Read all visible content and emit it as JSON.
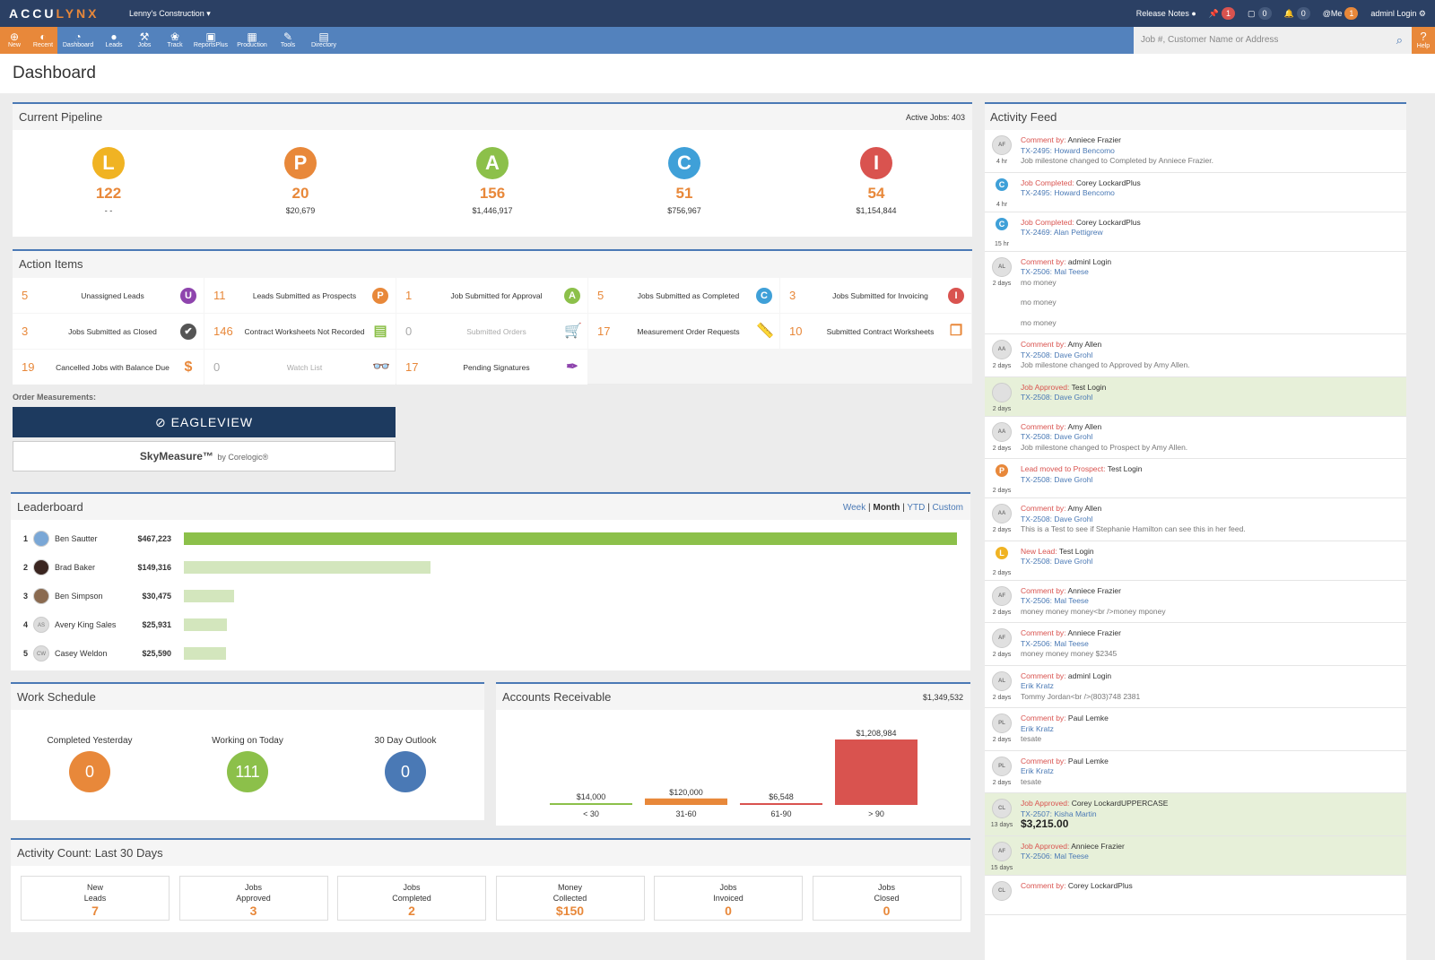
{
  "header": {
    "logo": "ACCULYNX",
    "company": "Lenny's Construction ▾",
    "release_notes": "Release Notes",
    "pins": "1",
    "calendar": "0",
    "bell": "0",
    "me_label": "@Me",
    "me": "1",
    "user": "adminl Login"
  },
  "nav": [
    {
      "label": "New",
      "icon": "⊕"
    },
    {
      "label": "Recent",
      "icon": "◐"
    },
    {
      "label": "Dashboard",
      "icon": "◔"
    },
    {
      "label": "Leads",
      "icon": "●"
    },
    {
      "label": "Jobs",
      "icon": "⚒"
    },
    {
      "label": "Track",
      "icon": "❀"
    },
    {
      "label": "ReportsPlus",
      "icon": "▣"
    },
    {
      "label": "Production",
      "icon": "▦"
    },
    {
      "label": "Tools",
      "icon": "✎"
    },
    {
      "label": "Directory",
      "icon": "▤"
    }
  ],
  "search": {
    "placeholder": "Job #, Customer Name or Address"
  },
  "help": "Help",
  "page_title": "Dashboard",
  "pipeline": {
    "title": "Current Pipeline",
    "active_jobs": "Active Jobs: 403",
    "stages": [
      {
        "letter": "L",
        "count": "122",
        "value": "- -",
        "color": "#f0b323"
      },
      {
        "letter": "P",
        "count": "20",
        "value": "$20,679",
        "color": "#e8883a"
      },
      {
        "letter": "A",
        "count": "156",
        "value": "$1,446,917",
        "color": "#8cc04a"
      },
      {
        "letter": "C",
        "count": "51",
        "value": "$756,967",
        "color": "#3fa0d8"
      },
      {
        "letter": "I",
        "count": "54",
        "value": "$1,154,844",
        "color": "#d9534f"
      }
    ]
  },
  "action_items": {
    "title": "Action Items",
    "items": [
      {
        "count": "5",
        "label": "Unassigned Leads",
        "icon": "U",
        "color": "#8e44ad"
      },
      {
        "count": "11",
        "label": "Leads Submitted as Prospects",
        "icon": "P",
        "color": "#e8883a"
      },
      {
        "count": "1",
        "label": "Job Submitted for Approval",
        "icon": "A",
        "color": "#8cc04a"
      },
      {
        "count": "5",
        "label": "Jobs Submitted as Completed",
        "icon": "C",
        "color": "#3fa0d8"
      },
      {
        "count": "3",
        "label": "Jobs Submitted for Invoicing",
        "icon": "I",
        "color": "#d9534f"
      },
      {
        "count": "3",
        "label": "Jobs Submitted as Closed",
        "icon": "✔",
        "color": "#555555"
      },
      {
        "count": "146",
        "label": "Contract Worksheets Not Recorded",
        "icon": "▤",
        "color": "#8cc04a"
      },
      {
        "count": "0",
        "label": "Submitted Orders",
        "icon": "🛒",
        "color": "#cccccc",
        "dim": true
      },
      {
        "count": "17",
        "label": "Measurement Order Requests",
        "icon": "📏",
        "color": "#e8a060"
      },
      {
        "count": "10",
        "label": "Submitted Contract Worksheets",
        "icon": "❐",
        "color": "#e8883a"
      },
      {
        "count": "19",
        "label": "Cancelled Jobs with Balance Due",
        "icon": "$",
        "color": "#e8883a"
      },
      {
        "count": "0",
        "label": "Watch List",
        "icon": "👓",
        "color": "#bbbbbb",
        "dim": true
      },
      {
        "count": "17",
        "label": "Pending Signatures",
        "icon": "✒",
        "color": "#8e44ad"
      }
    ]
  },
  "order_measurements": {
    "label": "Order Measurements:",
    "eagleview": "EAGLEVIEW",
    "skymeasure": "SkyMeasure™",
    "by": "by Corelogic®"
  },
  "leaderboard": {
    "title": "Leaderboard",
    "periods": [
      "Week",
      "Month",
      "YTD",
      "Custom"
    ],
    "active": "Month",
    "rows": [
      {
        "rank": "1",
        "name": "Ben Sautter",
        "initials": "",
        "amount": "$467,223",
        "value": 467223
      },
      {
        "rank": "2",
        "name": "Brad Baker",
        "initials": "",
        "amount": "$149,316",
        "value": 149316
      },
      {
        "rank": "3",
        "name": "Ben Simpson",
        "initials": "",
        "amount": "$30,475",
        "value": 30475
      },
      {
        "rank": "4",
        "name": "Avery King Sales",
        "initials": "AS",
        "amount": "$25,931",
        "value": 25931
      },
      {
        "rank": "5",
        "name": "Casey Weldon",
        "initials": "CW",
        "amount": "$25,590",
        "value": 25590
      }
    ]
  },
  "work_schedule": {
    "title": "Work Schedule",
    "items": [
      {
        "label": "Completed Yesterday",
        "value": "0",
        "color": "#e8883a"
      },
      {
        "label": "Working on Today",
        "value": "111",
        "color": "#8cc04a"
      },
      {
        "label": "30 Day Outlook",
        "value": "0",
        "color": "#4a79b5"
      }
    ]
  },
  "chart_data": {
    "type": "bar",
    "title": "Accounts Receivable",
    "total": "$1,349,532",
    "categories": [
      "< 30",
      "31-60",
      "61-90",
      "> 90"
    ],
    "values": [
      14000,
      120000,
      6548,
      1208984
    ],
    "labels": [
      "$14,000",
      "$120,000",
      "$6,548",
      "$1,208,984"
    ],
    "colors": [
      "#8cc04a",
      "#e8883a",
      "#d9534f",
      "#d9534f"
    ]
  },
  "activity_count": {
    "title": "Activity Count: Last 30 Days",
    "items": [
      {
        "label": "New Leads",
        "value": "7"
      },
      {
        "label": "Jobs Approved",
        "value": "3"
      },
      {
        "label": "Jobs Completed",
        "value": "2"
      },
      {
        "label": "Money Collected",
        "value": "$150"
      },
      {
        "label": "Jobs Invoiced",
        "value": "0"
      },
      {
        "label": "Jobs Closed",
        "value": "0"
      }
    ]
  },
  "feed": {
    "title": "Activity Feed",
    "items": [
      {
        "av": "AF",
        "time": "4 hr",
        "kind": "Comment by:",
        "who": "Anniece Frazier",
        "job": "TX-2495: Howard Bencomo",
        "body": [
          "Job milestone changed to Completed by Anniece Frazier."
        ]
      },
      {
        "av": "C",
        "color": "#3fa0d8",
        "time": "4 hr",
        "kind": "Job Completed:",
        "who": "Corey LockardPlus",
        "job": "TX-2495: Howard Bencomo",
        "body": []
      },
      {
        "av": "C",
        "color": "#3fa0d8",
        "time": "15 hr",
        "kind": "Job Completed:",
        "who": "Corey LockardPlus",
        "job": "TX-2469: Alan Pettigrew",
        "body": []
      },
      {
        "av": "AL",
        "time": "2 days",
        "kind": "Comment by:",
        "who": "adminl Login",
        "job": "TX-2506: Mal Teese",
        "body": [
          "mo money",
          "",
          "mo money",
          "",
          "mo money"
        ]
      },
      {
        "av": "AA",
        "time": "2 days",
        "kind": "Comment by:",
        "who": "Amy Allen",
        "job": "TX-2508: Dave Grohl",
        "body": [
          "Job milestone changed to Approved by Amy Allen."
        ]
      },
      {
        "av": "",
        "time": "2 days",
        "kind": "Job Approved:",
        "who": "Test Login",
        "job": "TX-2508: Dave Grohl",
        "body": [],
        "green": true
      },
      {
        "av": "AA",
        "time": "2 days",
        "kind": "Comment by:",
        "who": "Amy Allen",
        "job": "TX-2508: Dave Grohl",
        "body": [
          "Job milestone changed to Prospect by Amy Allen."
        ]
      },
      {
        "av": "P",
        "color": "#e8883a",
        "time": "2 days",
        "kind": "Lead moved to Prospect:",
        "who": "Test Login",
        "job": "TX-2508: Dave Grohl",
        "body": []
      },
      {
        "av": "AA",
        "time": "2 days",
        "kind": "Comment by:",
        "who": "Amy Allen",
        "job": "TX-2508: Dave Grohl",
        "body": [
          "This is a Test to see if Stephanie Hamilton can see this in her feed."
        ]
      },
      {
        "av": "L",
        "color": "#f0b323",
        "time": "2 days",
        "kind": "New Lead:",
        "who": "Test Login",
        "job": "TX-2508: Dave Grohl",
        "body": []
      },
      {
        "av": "AF",
        "time": "2 days",
        "kind": "Comment by:",
        "who": "Anniece Frazier",
        "job": "TX-2506: Mal Teese",
        "body": [
          "money money money<br />money mponey"
        ]
      },
      {
        "av": "AF",
        "time": "2 days",
        "kind": "Comment by:",
        "who": "Anniece Frazier",
        "job": "TX-2506: Mal Teese",
        "body": [
          "money money money $2345"
        ]
      },
      {
        "av": "AL",
        "time": "2 days",
        "kind": "Comment by:",
        "who": "adminl Login",
        "job": "Erik Kratz",
        "body": [
          "Tommy Jordan<br />(803)748 2381"
        ]
      },
      {
        "av": "PL",
        "time": "2 days",
        "kind": "Comment by:",
        "who": "Paul Lemke",
        "job": "Erik Kratz",
        "body": [
          "tesate"
        ]
      },
      {
        "av": "PL",
        "time": "2 days",
        "kind": "Comment by:",
        "who": "Paul Lemke",
        "job": "Erik Kratz",
        "body": [
          "tesate"
        ]
      },
      {
        "av": "CL",
        "time": "13 days",
        "kind": "Job Approved:",
        "who": "Corey LockardUPPERCASE",
        "job": "TX-2507: Kisha Martin",
        "body": [],
        "money": "$3,215.00",
        "green": true
      },
      {
        "av": "AF",
        "time": "15 days",
        "kind": "Job Approved:",
        "who": "Anniece Frazier",
        "job": "TX-2506: Mal Teese",
        "body": [],
        "green": true
      },
      {
        "av": "CL",
        "time": "",
        "kind": "Comment by:",
        "who": "Corey LockardPlus",
        "job": "",
        "body": []
      }
    ]
  }
}
